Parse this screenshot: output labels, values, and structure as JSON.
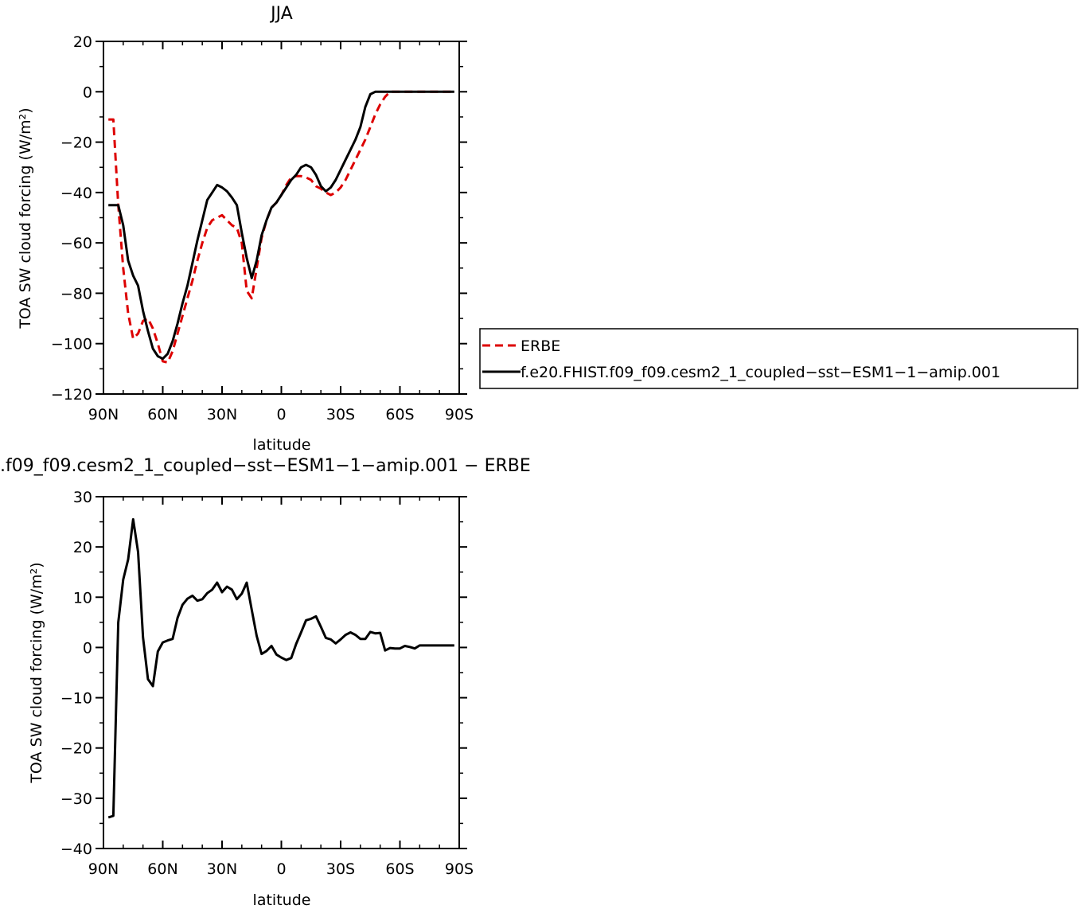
{
  "chart_data": [
    {
      "type": "line",
      "title": "JJA",
      "xlabel": "latitude",
      "ylabel": "TOA SW cloud forcing (W/m²)",
      "xlim": [
        90,
        -90
      ],
      "ylim": [
        -120,
        20
      ],
      "xticks": [
        90,
        60,
        30,
        0,
        -30,
        -60,
        -90
      ],
      "xtick_labels": [
        "90N",
        "60N",
        "30N",
        "0",
        "30S",
        "60S",
        "90S"
      ],
      "yticks": [
        -120,
        -100,
        -80,
        -60,
        -40,
        -20,
        0,
        20
      ],
      "ytick_labels": [
        "−120",
        "−100",
        "−80",
        "−60",
        "−40",
        "−20",
        "0",
        "20"
      ],
      "legend": {
        "placement": "right",
        "entries": [
          "ERBE",
          "f.e20.FHIST.f09_f09.cesm2_1_coupled−sst−ESM1−1−amip.001"
        ]
      },
      "series": [
        {
          "name": "ERBE",
          "color": "#dd0000",
          "dash": "dashed",
          "x": [
            87.5,
            85,
            82.5,
            80,
            77.5,
            75,
            72.5,
            70,
            67.5,
            65,
            62.5,
            60,
            57.5,
            55,
            52.5,
            50,
            47.5,
            45,
            42.5,
            40,
            37.5,
            35,
            32.5,
            30,
            27.5,
            25,
            22.5,
            20,
            17.5,
            15,
            12.5,
            10,
            7.5,
            5,
            2.5,
            0,
            -2.5,
            -5,
            -7.5,
            -10,
            -12.5,
            -15,
            -17.5,
            -20,
            -22.5,
            -25,
            -27.5,
            -30,
            -32.5,
            -35,
            -37.5,
            -40,
            -42.5,
            -45,
            -47.5,
            -50,
            -52.5,
            -55,
            -57.5,
            -60,
            -62.5,
            -65,
            -67.5,
            -70,
            -72.5,
            -75,
            -77.5,
            -80,
            -82.5,
            -85,
            -87.5
          ],
          "y": [
            -11,
            -11,
            -45,
            -70,
            -88,
            -98,
            -96,
            -91,
            -90,
            -94,
            -100,
            -107,
            -107.5,
            -103,
            -96,
            -89,
            -82,
            -75,
            -67,
            -60,
            -54,
            -51,
            -50,
            -49,
            -51,
            -53,
            -54,
            -60,
            -79,
            -82,
            -70,
            -58,
            -51,
            -46,
            -44,
            -41,
            -37,
            -34,
            -33.5,
            -33.5,
            -34,
            -35,
            -37.5,
            -38.5,
            -40,
            -41,
            -40,
            -38,
            -35,
            -31,
            -27,
            -23,
            -19,
            -14,
            -9,
            -5,
            -2,
            0,
            0,
            0,
            0,
            0,
            0,
            0,
            0,
            0,
            0,
            0,
            0,
            0,
            0
          ]
        },
        {
          "name": "f.e20.FHIST.f09_f09.cesm2_1_coupled−sst−ESM1−1−amip.001",
          "color": "#000000",
          "dash": "solid",
          "x": [
            87.5,
            85,
            82.5,
            80,
            77.5,
            75,
            72.5,
            70,
            67.5,
            65,
            62.5,
            60,
            57.5,
            55,
            52.5,
            50,
            47.5,
            45,
            42.5,
            40,
            37.5,
            35,
            32.5,
            30,
            27.5,
            25,
            22.5,
            20,
            17.5,
            15,
            12.5,
            10,
            7.5,
            5,
            2.5,
            0,
            -2.5,
            -5,
            -7.5,
            -10,
            -12.5,
            -15,
            -17.5,
            -20,
            -22.5,
            -25,
            -27.5,
            -30,
            -32.5,
            -35,
            -37.5,
            -40,
            -42.5,
            -45,
            -47.5,
            -50,
            -52.5,
            -55,
            -57.5,
            -60,
            -62.5,
            -65,
            -67.5,
            -70,
            -72.5,
            -75,
            -77.5,
            -80,
            -82.5,
            -85,
            -87.5
          ],
          "y": [
            -45,
            -45,
            -45,
            -53,
            -67,
            -73,
            -77,
            -87,
            -95,
            -102,
            -105,
            -106,
            -104,
            -99,
            -92,
            -84,
            -77,
            -68,
            -59,
            -51,
            -43,
            -40,
            -37,
            -38,
            -39.5,
            -42,
            -45,
            -56,
            -66,
            -74,
            -67,
            -57,
            -51,
            -46,
            -44,
            -41,
            -38,
            -35,
            -33,
            -30,
            -29,
            -30,
            -33,
            -37.5,
            -39.5,
            -38,
            -35,
            -31,
            -27,
            -23,
            -19,
            -14,
            -6,
            -1,
            0,
            0,
            0,
            0,
            0,
            0,
            0,
            0,
            0,
            0,
            0,
            0,
            0,
            0,
            0,
            0,
            0
          ]
        }
      ]
    },
    {
      "type": "line",
      "title": ".f09_f09.cesm2_1_coupled−sst−ESM1−1−amip.001 − ERBE",
      "xlabel": "latitude",
      "ylabel": "TOA SW cloud forcing (W/m²)",
      "xlim": [
        90,
        -90
      ],
      "ylim": [
        -40,
        30
      ],
      "xticks": [
        90,
        60,
        30,
        0,
        -30,
        -60,
        -90
      ],
      "xtick_labels": [
        "90N",
        "60N",
        "30N",
        "0",
        "30S",
        "60S",
        "90S"
      ],
      "yticks": [
        -40,
        -30,
        -20,
        -10,
        0,
        10,
        20,
        30
      ],
      "ytick_labels": [
        "−40",
        "−30",
        "−20",
        "−10",
        "0",
        "10",
        "20",
        "30"
      ],
      "series": [
        {
          "color": "#000000",
          "dash": "solid",
          "x": [
            87.5,
            85,
            82.5,
            80,
            77.5,
            75,
            72.5,
            70,
            67.5,
            65,
            62.5,
            60,
            57.5,
            55,
            52.5,
            50,
            47.5,
            45,
            42.5,
            40,
            37.5,
            35,
            32.5,
            30,
            27.5,
            25,
            22.5,
            20,
            17.5,
            15,
            12.5,
            10,
            7.5,
            5,
            2.5,
            0,
            -2.5,
            -5,
            -7.5,
            -10,
            -12.5,
            -15,
            -17.5,
            -20,
            -22.5,
            -25,
            -27.5,
            -30,
            -32.5,
            -35,
            -37.5,
            -40,
            -42.5,
            -45,
            -47.5,
            -50,
            -52.5,
            -55,
            -57.5,
            -60,
            -62.5,
            -65,
            -67.5,
            -70,
            -72.5,
            -75,
            -77.5,
            -80,
            -82.5,
            -85,
            -87.5
          ],
          "y": [
            -33.8,
            -33.5,
            5,
            13.5,
            17.5,
            25.5,
            19,
            2,
            -6.3,
            -7.7,
            -0.8,
            1,
            1.4,
            1.7,
            5.9,
            8.5,
            9.7,
            10.3,
            9.3,
            9.6,
            10.8,
            11.5,
            12.9,
            11,
            12.1,
            11.5,
            9.6,
            10.7,
            12.9,
            7.5,
            2.3,
            -1.3,
            -0.7,
            0.3,
            -1.4,
            -2,
            -2.5,
            -2.1,
            0.7,
            3,
            5.4,
            5.7,
            6.2,
            4.1,
            1.9,
            1.6,
            0.8,
            1.6,
            2.5,
            3,
            2.5,
            1.7,
            1.7,
            3.1,
            2.8,
            2.9,
            -0.6,
            -0.1,
            -0.2,
            -0.2,
            0.3,
            0.1,
            -0.2,
            0.4,
            0.4,
            0.4,
            0.4,
            0.4,
            0.4,
            0.4,
            0.4
          ]
        }
      ]
    }
  ]
}
